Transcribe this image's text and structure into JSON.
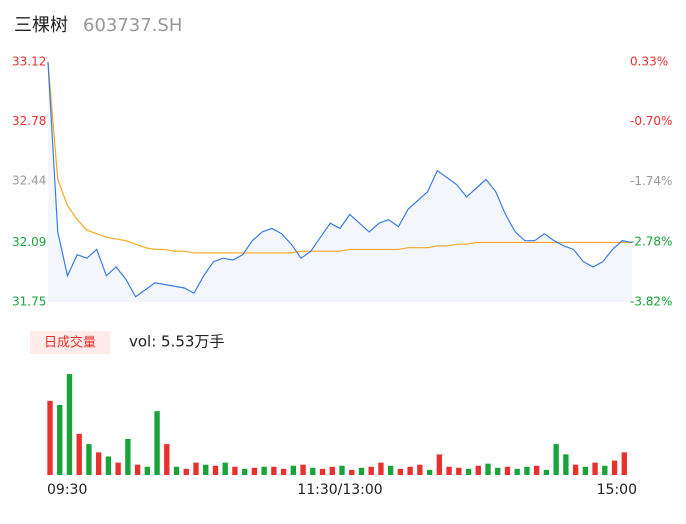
{
  "header": {
    "name": "三棵树",
    "code": "603737.SH"
  },
  "volume_tag": "日成交量",
  "volume_text": "vol: 5.53万手",
  "chart_data": [
    {
      "type": "line",
      "x": [
        0,
        4,
        8,
        12,
        16,
        20,
        24,
        28,
        32,
        36,
        40,
        44,
        48,
        52,
        56,
        60,
        64,
        68,
        72,
        76,
        80,
        84,
        88,
        92,
        96,
        100,
        104,
        108,
        112,
        116,
        120,
        124,
        128,
        132,
        136,
        140,
        144,
        148,
        152,
        156,
        160,
        164,
        168,
        172,
        176,
        180,
        184,
        188,
        192,
        196,
        200,
        204,
        208,
        212,
        216,
        220,
        224,
        228,
        232,
        236,
        240
      ],
      "series": [
        {
          "name": "price",
          "color": "#3d7be0",
          "values": [
            33.12,
            32.15,
            31.9,
            32.02,
            32.0,
            32.05,
            31.9,
            31.95,
            31.88,
            31.78,
            31.82,
            31.86,
            31.85,
            31.84,
            31.83,
            31.8,
            31.9,
            31.98,
            32.0,
            31.99,
            32.02,
            32.1,
            32.15,
            32.17,
            32.14,
            32.08,
            32.0,
            32.04,
            32.12,
            32.2,
            32.17,
            32.25,
            32.2,
            32.15,
            32.2,
            32.22,
            32.18,
            32.28,
            32.33,
            32.38,
            32.5,
            32.46,
            32.42,
            32.35,
            32.4,
            32.45,
            32.38,
            32.25,
            32.15,
            32.1,
            32.1,
            32.14,
            32.1,
            32.07,
            32.05,
            31.98,
            31.95,
            31.98,
            32.05,
            32.1,
            32.09
          ]
        },
        {
          "name": "average",
          "color": "#f5a623",
          "values": [
            33.12,
            32.45,
            32.3,
            32.22,
            32.16,
            32.14,
            32.12,
            32.11,
            32.1,
            32.08,
            32.06,
            32.05,
            32.05,
            32.04,
            32.04,
            32.03,
            32.03,
            32.03,
            32.03,
            32.03,
            32.03,
            32.03,
            32.03,
            32.03,
            32.03,
            32.03,
            32.04,
            32.04,
            32.04,
            32.04,
            32.04,
            32.05,
            32.05,
            32.05,
            32.05,
            32.05,
            32.05,
            32.06,
            32.06,
            32.06,
            32.07,
            32.07,
            32.08,
            32.08,
            32.09,
            32.09,
            32.09,
            32.09,
            32.09,
            32.09,
            32.09,
            32.09,
            32.09,
            32.09,
            32.09,
            32.09,
            32.09,
            32.09,
            32.09,
            32.09,
            32.09
          ]
        }
      ],
      "xlim": [
        0,
        240
      ],
      "ylim": [
        31.75,
        33.12
      ],
      "yticks": [
        33.12,
        32.78,
        32.44,
        32.09,
        31.75
      ],
      "y2lim": [
        -3.82,
        0.33
      ],
      "y2ticks": [
        {
          "value": 0.33,
          "label": "0.33%"
        },
        {
          "value": -0.7,
          "label": "-0.70%"
        },
        {
          "value": -1.74,
          "label": "-1.74%"
        },
        {
          "value": -2.78,
          "label": "-2.78%"
        },
        {
          "value": -3.82,
          "label": "-3.82%"
        }
      ],
      "up_color": "#e8312f",
      "down_color": "#1aa33a",
      "flat_color": "#999999",
      "area_color": "#f3f6fd"
    },
    {
      "type": "bar",
      "x": [
        0,
        4,
        8,
        12,
        16,
        20,
        24,
        28,
        32,
        36,
        40,
        44,
        48,
        52,
        56,
        60,
        64,
        68,
        72,
        76,
        80,
        84,
        88,
        92,
        96,
        100,
        104,
        108,
        112,
        116,
        120,
        124,
        128,
        132,
        136,
        140,
        144,
        148,
        152,
        156,
        160,
        164,
        168,
        172,
        176,
        180,
        184,
        188,
        192,
        196,
        200,
        204,
        208,
        212,
        216,
        220,
        224,
        228,
        232,
        236
      ],
      "values": [
        72,
        68,
        98,
        40,
        30,
        22,
        18,
        12,
        35,
        10,
        8,
        62,
        30,
        8,
        6,
        12,
        10,
        9,
        12,
        8,
        6,
        7,
        8,
        8,
        6,
        9,
        10,
        7,
        6,
        8,
        9,
        5,
        7,
        8,
        12,
        9,
        6,
        8,
        10,
        5,
        20,
        8,
        7,
        6,
        9,
        11,
        7,
        8,
        6,
        8,
        9,
        5,
        30,
        20,
        10,
        8,
        12,
        9,
        14,
        22
      ],
      "bar_colors": [
        "#e8312f",
        "#1aa33a",
        "#1aa33a",
        "#e8312f",
        "#1aa33a",
        "#e8312f",
        "#1aa33a",
        "#e8312f",
        "#1aa33a",
        "#e8312f",
        "#1aa33a",
        "#1aa33a",
        "#e8312f",
        "#1aa33a",
        "#e8312f",
        "#e8312f",
        "#1aa33a",
        "#e8312f",
        "#1aa33a",
        "#e8312f",
        "#1aa33a",
        "#e8312f",
        "#1aa33a",
        "#e8312f",
        "#e8312f",
        "#1aa33a",
        "#e8312f",
        "#1aa33a",
        "#e8312f",
        "#e8312f",
        "#1aa33a",
        "#e8312f",
        "#1aa33a",
        "#e8312f",
        "#e8312f",
        "#1aa33a",
        "#e8312f",
        "#e8312f",
        "#e8312f",
        "#1aa33a",
        "#e8312f",
        "#e8312f",
        "#e8312f",
        "#1aa33a",
        "#e8312f",
        "#1aa33a",
        "#1aa33a",
        "#e8312f",
        "#1aa33a",
        "#1aa33a",
        "#e8312f",
        "#1aa33a",
        "#1aa33a",
        "#1aa33a",
        "#e8312f",
        "#1aa33a",
        "#e8312f",
        "#1aa33a",
        "#e8312f",
        "#e8312f"
      ],
      "xlim": [
        0,
        240
      ],
      "ylim": [
        0,
        100
      ],
      "xticks": [
        {
          "value": 0,
          "label": "09:30"
        },
        {
          "value": 120,
          "label": "11:30/13:00"
        },
        {
          "value": 240,
          "label": "15:00"
        }
      ]
    }
  ]
}
